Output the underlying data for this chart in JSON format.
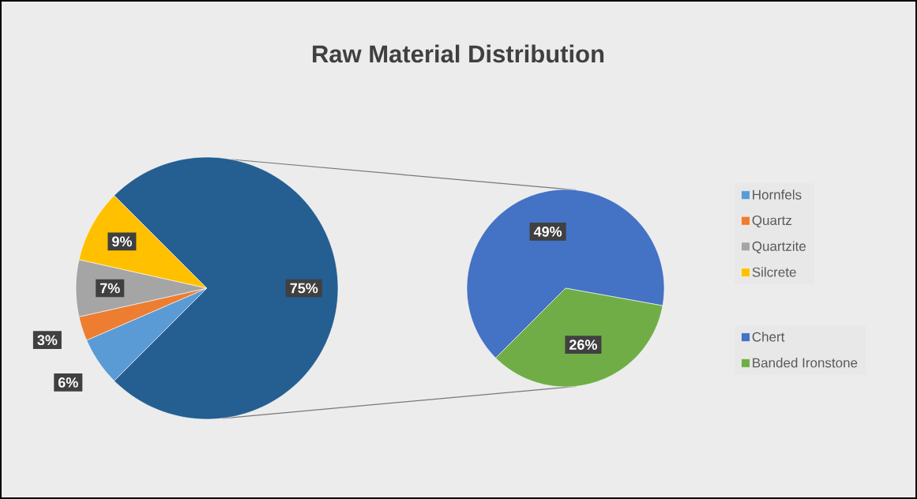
{
  "chart_data": [
    {
      "type": "pie",
      "title": "Raw Material Distribution",
      "categories": [
        "Hornfels",
        "Quartz",
        "Quartzite",
        "Silcrete",
        null
      ],
      "values": [
        6,
        3,
        7,
        9,
        75
      ],
      "colors": [
        "#5b9bd5",
        "#ed7d31",
        "#a5a5a5",
        "#ffc000",
        "#255e91"
      ],
      "value_labels": [
        "6%",
        "3%",
        "7%",
        "9%",
        "75%"
      ],
      "legend": "right"
    },
    {
      "type": "pie",
      "categories": [
        "Chert",
        "Banded Ironstone"
      ],
      "values": [
        49,
        26
      ],
      "colors": [
        "#4472c4",
        "#70ad47"
      ],
      "value_labels": [
        "49%",
        "26%"
      ],
      "legend": "right"
    }
  ]
}
